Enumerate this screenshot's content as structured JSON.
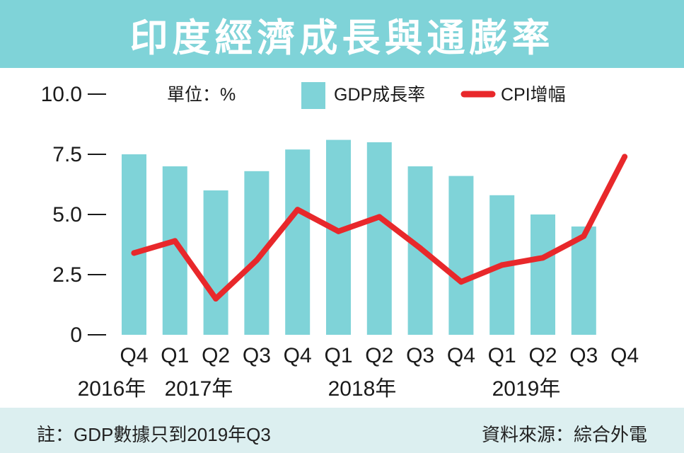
{
  "title": "印度經濟成長與通膨率",
  "unit_label": "單位：%",
  "footnote": "註：GDP數據只到2019年Q3",
  "source": "資料來源：綜合外電",
  "colors": {
    "title_bg": "#7fd3d8",
    "bar": "#7fd3d8",
    "line": "#e8282b",
    "footer_bg": "#dceff0"
  },
  "chart_data": {
    "type": "bar",
    "categories": [
      "Q4",
      "Q1",
      "Q2",
      "Q3",
      "Q4",
      "Q1",
      "Q2",
      "Q3",
      "Q4",
      "Q1",
      "Q2",
      "Q3",
      "Q4"
    ],
    "year_labels": [
      "2016年",
      "2017年",
      "2018年",
      "2019年"
    ],
    "y_ticks": [
      "10.0",
      "7.5",
      "5.0",
      "2.5",
      "0"
    ],
    "ylim": [
      0,
      10
    ],
    "series": [
      {
        "name": "GDP成長率",
        "kind": "bar",
        "values": [
          7.5,
          7.0,
          6.0,
          6.8,
          7.7,
          8.1,
          8.0,
          7.0,
          6.6,
          5.8,
          5.0,
          4.5,
          null
        ]
      },
      {
        "name": "CPI增幅",
        "kind": "line",
        "values": [
          3.4,
          3.9,
          1.5,
          3.1,
          5.2,
          4.3,
          4.9,
          3.6,
          2.2,
          2.9,
          3.2,
          4.1,
          7.4
        ]
      }
    ]
  }
}
